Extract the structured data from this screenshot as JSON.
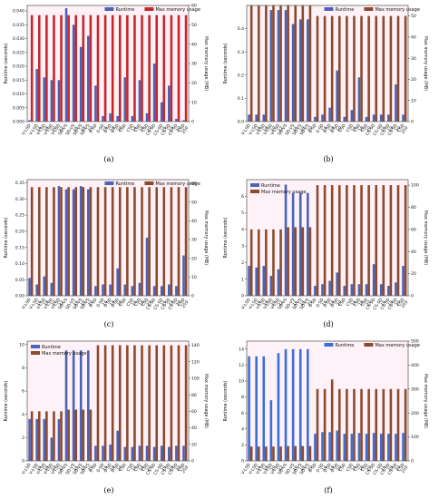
{
  "figure": {
    "colors": {
      "runtime": "#4a62b8",
      "memory_a": "#c62828",
      "memory_b": "#8b4a2b",
      "runtime_f": "#3b6fd6",
      "memory_f": "#8b4a2b",
      "highlight_bg": "#fde6f1",
      "highlight_border": "#e39ac3",
      "highlight_bg_green": "#e6f7e6",
      "highlight_bg_blue": "#e6eefc"
    }
  },
  "chart_data": [
    {
      "panel": "(a)",
      "type": "bar",
      "categories": [
        "V-LSD",
        "V-LSD\n16",
        "V-LSD\n18",
        "V-LSD\n20",
        "V-LSD\n22",
        "SD-VS",
        "SD-VS\n16",
        "SD-VS\n18",
        "SD-VS\n20",
        "0-SD",
        "0-SD\n16",
        "0-SD\n18",
        "0-SD\n20",
        "CSD",
        "CSD\n16",
        "CSD\n18",
        "CSD\n20",
        "CS-SD",
        "CS-SD\n16",
        "CS-SD\n18",
        "CS-SD\n20",
        "CSD\n250"
      ],
      "series": [
        {
          "name": "Runtime",
          "axis": "left",
          "values": [
            0.0005,
            0.019,
            0.016,
            0.015,
            0.015,
            0.041,
            0.035,
            0.027,
            0.031,
            0.013,
            0.002,
            0.003,
            0.002,
            0.016,
            0.002,
            0.015,
            0.003,
            0.021,
            0.007,
            0.013,
            0.001,
            0.0005
          ]
        },
        {
          "name": "Max memory usage",
          "axis": "right",
          "values": [
            55,
            55,
            55,
            55,
            55,
            55,
            55,
            55,
            55,
            55,
            55,
            55,
            55,
            55,
            55,
            55,
            55,
            55,
            55,
            55,
            55,
            55
          ]
        }
      ],
      "ylabel_left": "Runtime (seconds)",
      "ylabel_right": "Max memory usage (MB)",
      "yticks_left": [
        "0.000",
        "0.005",
        "0.010",
        "0.015",
        "0.020",
        "0.025",
        "0.030",
        "0.035",
        "0.040"
      ],
      "yticks_right": [
        "0",
        "10",
        "20",
        "30",
        "40",
        "50",
        "60"
      ],
      "ylim_left": [
        0,
        0.042
      ],
      "ylim_right": [
        0,
        60
      ],
      "legend": "top-center",
      "memory_color": "memory_a"
    },
    {
      "panel": "(b)",
      "type": "bar",
      "categories": [
        "V-LSD",
        "V-LSD\n16",
        "V-LSD\n18",
        "V-LSD\n20",
        "V-LSD\n22",
        "SD-VS",
        "SD-VS\n16",
        "SD-VS\n18",
        "SD-VS\n20",
        "0-SD",
        "0-SD\n16",
        "0-SD\n18",
        "0-SD\n20",
        "CSD",
        "CSD\n16",
        "CSD\n18",
        "CSD\n20",
        "CS-SD",
        "CS-SD\n16",
        "CS-SD\n18",
        "CS-SD\n20",
        "CSD\n250"
      ],
      "series": [
        {
          "name": "Runtime",
          "axis": "left",
          "values": [
            0.03,
            0.03,
            0.03,
            0.48,
            0.48,
            0.48,
            0.42,
            0.44,
            0.44,
            0.02,
            0.03,
            0.06,
            0.22,
            0.02,
            0.05,
            0.19,
            0.02,
            0.03,
            0.03,
            0.03,
            0.16,
            0.03
          ]
        },
        {
          "name": "Max memory usage",
          "axis": "right",
          "values": [
            55,
            55,
            55,
            55,
            55,
            55,
            55,
            55,
            55,
            50,
            50,
            50,
            50,
            50,
            50,
            50,
            50,
            50,
            50,
            50,
            50,
            50
          ]
        }
      ],
      "ylabel_left": "Runtime (seconds)",
      "ylabel_right": "Max memory usage (MB)",
      "yticks_left": [
        "0.0",
        "0.1",
        "0.2",
        "0.3",
        "0.4"
      ],
      "yticks_right": [
        "0",
        "10",
        "20",
        "30",
        "40",
        "50"
      ],
      "ylim_left": [
        0,
        0.5
      ],
      "ylim_right": [
        0,
        55
      ],
      "legend": "top-center",
      "memory_color": "memory_b"
    },
    {
      "panel": "(c)",
      "type": "bar",
      "categories": [
        "V-LSD",
        "V-LSD\n16",
        "V-LSD\n18",
        "V-LSD\n20",
        "V-LSD\n22",
        "SD-VS",
        "SD-VS\n16",
        "SD-VS\n18",
        "SD-VS\n20",
        "0-SD",
        "0-SD\n16",
        "0-SD\n18",
        "0-SD\n20",
        "CSD",
        "CSD\n16",
        "CSD\n18",
        "CSD\n20",
        "CS-SD",
        "CS-SD\n16",
        "CS-SD\n18",
        "CS-SD\n20",
        "CSD\n250"
      ],
      "series": [
        {
          "name": "Runtime",
          "axis": "left",
          "values": [
            0.055,
            0.035,
            0.06,
            0.04,
            0.34,
            0.33,
            0.33,
            0.34,
            0.33,
            0.03,
            0.035,
            0.035,
            0.085,
            0.035,
            0.03,
            0.04,
            0.18,
            0.03,
            0.03,
            0.035,
            0.03,
            0.125
          ]
        },
        {
          "name": "Max memory usage",
          "axis": "right",
          "values": [
            58,
            58,
            58,
            58,
            58,
            58,
            58,
            58,
            58,
            58,
            58,
            58,
            58,
            58,
            58,
            58,
            58,
            58,
            58,
            58,
            58,
            58
          ]
        }
      ],
      "ylabel_left": "Runtime (seconds)",
      "ylabel_right": "Max memory usage (MB)",
      "yticks_left": [
        "0.00",
        "0.05",
        "0.10",
        "0.15",
        "0.20",
        "0.25",
        "0.30",
        "0.35"
      ],
      "yticks_right": [
        "0",
        "10",
        "20",
        "30",
        "40",
        "50",
        "60"
      ],
      "ylim_left": [
        0,
        0.36
      ],
      "ylim_right": [
        0,
        62
      ],
      "legend": "top-center",
      "memory_color": "memory_b"
    },
    {
      "panel": "(d)",
      "type": "bar",
      "categories": [
        "V-LSD",
        "V-LSD\n16",
        "V-LSD\n18",
        "V-LSD\n20",
        "V-LSD\n22",
        "SD-VS",
        "SD-VS\n16",
        "SD-VS\n18",
        "SD-VS\n20",
        "0-SD",
        "0-SD\n16",
        "0-SD\n18",
        "0-SD\n20",
        "CSD",
        "CSD\n16",
        "CSD\n18",
        "CSD\n20",
        "CS-SD",
        "CS-SD\n16",
        "CS-SD\n18",
        "CS-SD\n20",
        "CSD\n250"
      ],
      "series": [
        {
          "name": "Runtime",
          "axis": "left",
          "values": [
            1.8,
            1.7,
            1.8,
            1.2,
            1.6,
            6.7,
            6.2,
            6.2,
            6.2,
            0.6,
            0.7,
            0.9,
            1.4,
            0.6,
            0.7,
            0.7,
            0.7,
            1.9,
            0.7,
            0.6,
            0.8,
            1.8
          ]
        },
        {
          "name": "Max memory usage",
          "axis": "right",
          "values": [
            60,
            60,
            60,
            60,
            60,
            62,
            62,
            62,
            62,
            100,
            100,
            100,
            100,
            100,
            100,
            100,
            100,
            100,
            100,
            100,
            100,
            100
          ]
        }
      ],
      "ylabel_left": "Runtime (seconds)",
      "ylabel_right": "Max memory usage (MB)",
      "yticks_left": [
        "0",
        "1",
        "2",
        "3",
        "4",
        "5",
        "6"
      ],
      "yticks_right": [
        "0",
        "20",
        "40",
        "60",
        "80",
        "100"
      ],
      "ylim_left": [
        0,
        7
      ],
      "ylim_right": [
        0,
        105
      ],
      "legend": "top-left",
      "memory_color": "memory_b"
    },
    {
      "panel": "(e)",
      "type": "bar",
      "categories": [
        "V-LSD",
        "V-LSD\n16",
        "V-LSD\n18",
        "V-LSD\n20",
        "V-LSD\n22",
        "SD-VS",
        "SD-VS\n16",
        "SD-VS\n18",
        "SD-VS\n20",
        "0-SD",
        "0-SD\n16",
        "0-SD\n18",
        "0-SD\n20",
        "CSD",
        "CSD\n16",
        "CSD\n18",
        "CSD\n20",
        "CS-SD",
        "CS-SD\n16",
        "CS-SD\n18",
        "CS-SD\n20",
        "CSD\n250"
      ],
      "series": [
        {
          "name": "Runtime",
          "axis": "left",
          "values": [
            3.6,
            3.6,
            3.6,
            2.0,
            3.6,
            9.5,
            9.5,
            9.5,
            9.5,
            1.3,
            1.3,
            1.4,
            2.6,
            1.2,
            1.2,
            1.3,
            1.3,
            1.2,
            1.3,
            1.2,
            1.3,
            1.3
          ]
        },
        {
          "name": "Max memory usage",
          "axis": "right",
          "values": [
            60,
            60,
            60,
            60,
            60,
            62,
            62,
            62,
            62,
            140,
            140,
            140,
            140,
            140,
            140,
            140,
            140,
            140,
            140,
            140,
            140,
            140
          ]
        }
      ],
      "ylabel_left": "Runtime (seconds)",
      "ylabel_right": "Max memory usage (MB)",
      "yticks_left": [
        "0",
        "2",
        "4",
        "6",
        "8",
        "10"
      ],
      "yticks_right": [
        "0",
        "20",
        "40",
        "60",
        "80",
        "100",
        "120",
        "140"
      ],
      "ylim_left": [
        0,
        10.3
      ],
      "ylim_right": [
        0,
        145
      ],
      "legend": "top-left",
      "memory_color": "memory_b"
    },
    {
      "panel": "(f)",
      "type": "bar",
      "categories": [
        "V-LSD",
        "V-LSD\n16",
        "V-LSD\n18",
        "V-LSD\n20",
        "V-LSD\n22",
        "SD-VS",
        "SD-VS\n16",
        "SD-VS\n18",
        "SD-VS\n20",
        "0-SD",
        "0-SD\n16",
        "0-SD\n18",
        "0-SD\n20",
        "CSD",
        "CSD\n16",
        "CSD\n18",
        "CSD\n20",
        "CS-SD",
        "CS-SD\n16",
        "CS-SD\n18",
        "CS-SD\n20",
        "CSD\n250"
      ],
      "series": [
        {
          "name": "Runtime",
          "axis": "left",
          "values": [
            13.1,
            13.1,
            13.1,
            7.6,
            13.5,
            14.0,
            14.0,
            14.0,
            14.0,
            3.4,
            3.6,
            3.6,
            3.8,
            3.4,
            3.4,
            3.5,
            3.4,
            3.5,
            3.4,
            3.4,
            3.4,
            3.5
          ]
        },
        {
          "name": "Max memory usage",
          "axis": "right",
          "values": [
            60,
            60,
            60,
            60,
            60,
            62,
            62,
            62,
            62,
            300,
            300,
            340,
            300,
            300,
            300,
            300,
            300,
            300,
            300,
            300,
            300,
            300
          ]
        }
      ],
      "ylabel_left": "Runtime (seconds)",
      "ylabel_right": "Max memory usage (MB)",
      "yticks_left": [
        "0",
        "2",
        "4",
        "6",
        "8",
        "10",
        "12",
        "14"
      ],
      "yticks_right": [
        "0",
        "100",
        "200",
        "300",
        "400",
        "500"
      ],
      "ylim_left": [
        0,
        15
      ],
      "ylim_right": [
        0,
        500
      ],
      "legend": "top-center",
      "memory_color": "memory_b",
      "runtime_color": "runtime_f"
    }
  ]
}
